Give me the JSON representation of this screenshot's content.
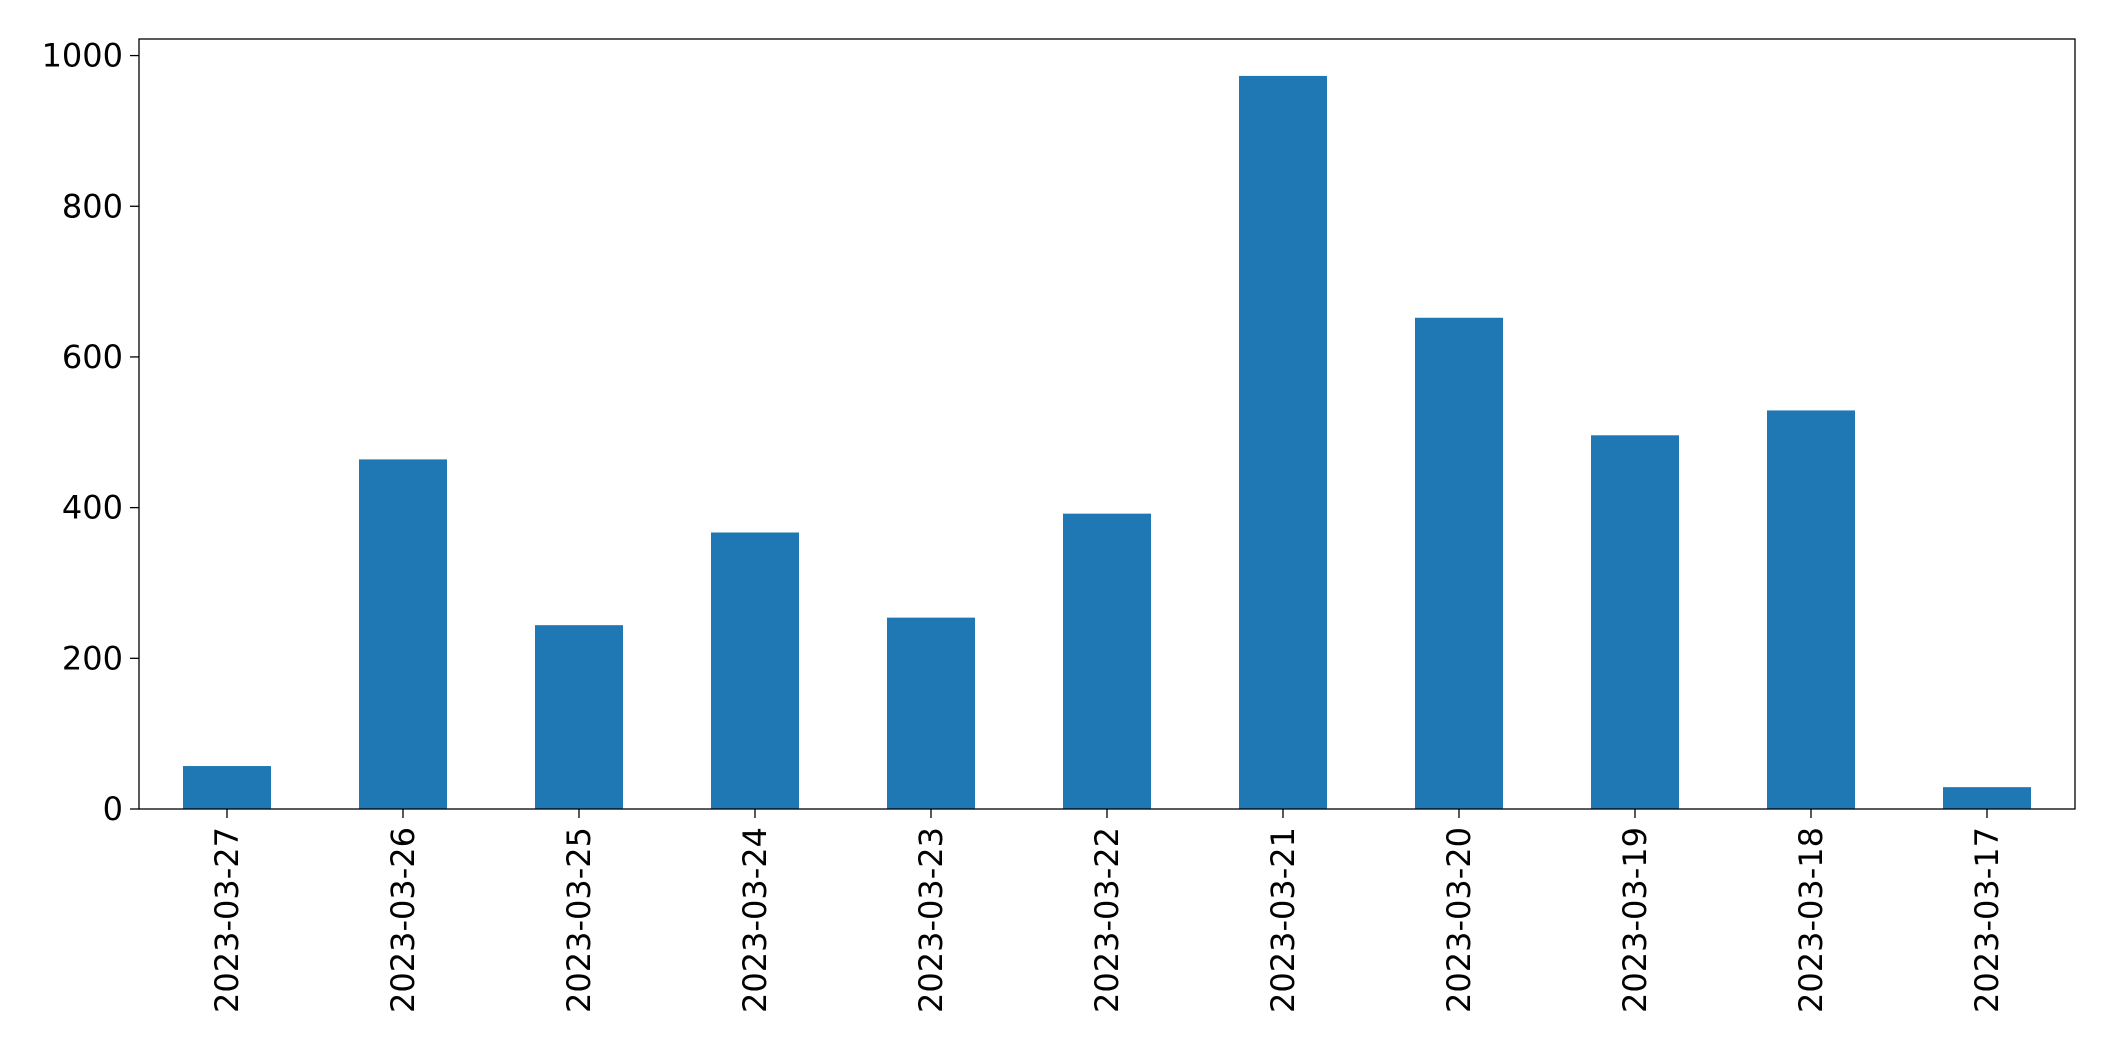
{
  "chart_data": {
    "type": "bar",
    "categories": [
      "2023-03-27",
      "2023-03-26",
      "2023-03-25",
      "2023-03-24",
      "2023-03-23",
      "2023-03-22",
      "2023-03-21",
      "2023-03-20",
      "2023-03-19",
      "2023-03-18",
      "2023-03-17"
    ],
    "values": [
      57,
      464,
      244,
      367,
      254,
      392,
      973,
      652,
      496,
      529,
      29
    ],
    "color": "#1f77b4",
    "ylim": [
      0,
      1022
    ],
    "yticks": [
      0,
      200,
      400,
      600,
      800,
      1000
    ],
    "grid": false
  }
}
